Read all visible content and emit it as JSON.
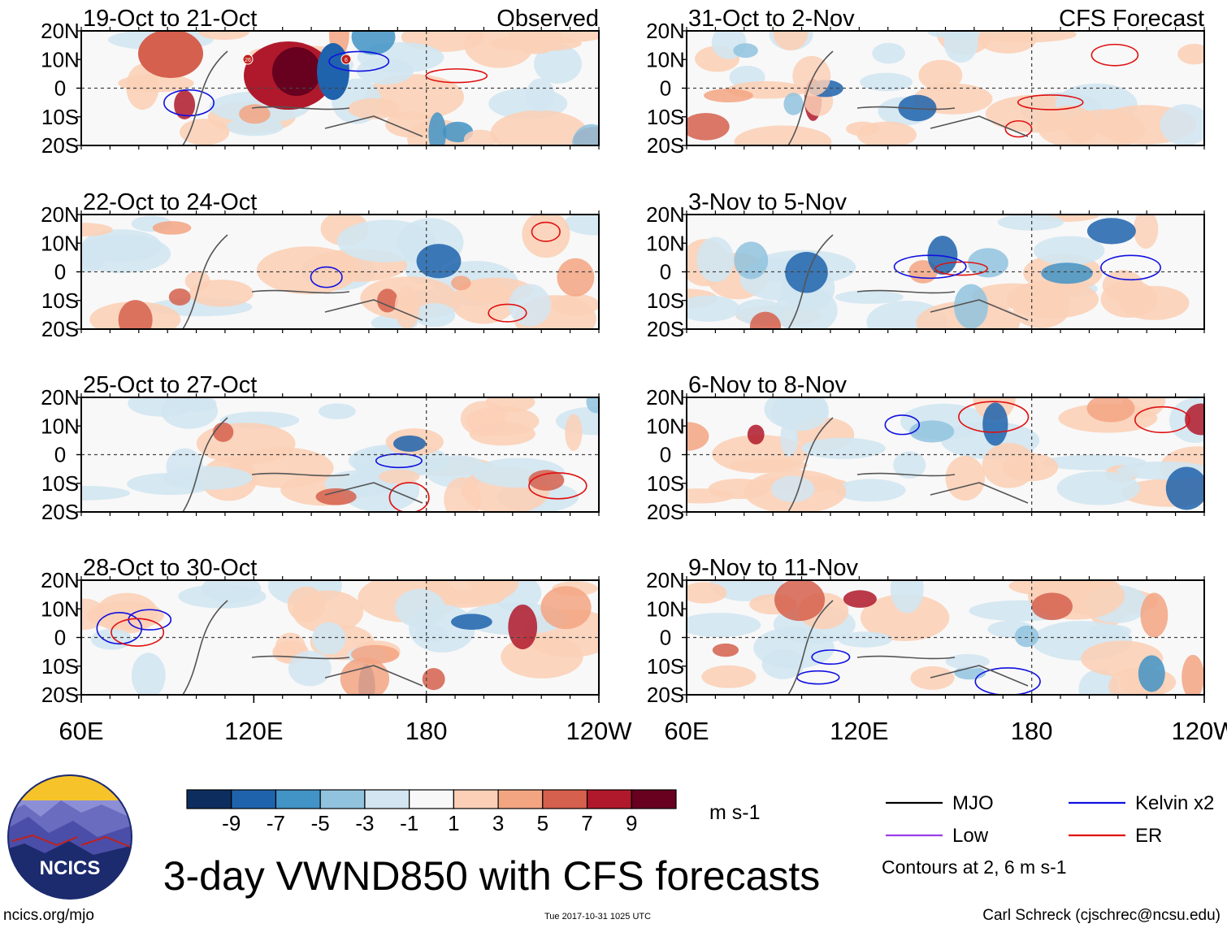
{
  "footer": {
    "site": "ncics.org/mjo",
    "timestamp": "Tue 2017-10-31 1025 UTC",
    "credit": "Carl Schreck (cjschrec@ncsu.edu)",
    "logo_text": "NCICS"
  },
  "chart_data": {
    "type": "heatmap",
    "title": "3-day VWND850 with CFS forecasts",
    "variable": "850-hPa meridional wind anomaly",
    "colorbar": {
      "unit": "m s-1",
      "tick_labels": [
        "-9",
        "-7",
        "-5",
        "-3",
        "-1",
        "1",
        "3",
        "5",
        "7",
        "9"
      ],
      "colors": [
        "#0d2d5e",
        "#1f63ad",
        "#4293c6",
        "#91c3df",
        "#d2e5f1",
        "#f8f8f8",
        "#fbd0b7",
        "#f3a582",
        "#d5604d",
        "#b0192b",
        "#68001f"
      ]
    },
    "x_axis": {
      "range_deg_east": [
        60,
        240
      ],
      "tick_labels": [
        "60E",
        "120E",
        "180",
        "120W"
      ]
    },
    "y_axis": {
      "range_deg_north": [
        -20,
        20
      ],
      "tick_labels": [
        "20N",
        "10N",
        "0",
        "10S",
        "20S"
      ]
    },
    "column_headers": {
      "left": "Observed",
      "right": "CFS Forecast"
    },
    "panels_left": [
      {
        "label": "19-Oct to 21-Oct",
        "contour_labels": [
          "26",
          "6"
        ]
      },
      {
        "label": "22-Oct to 24-Oct"
      },
      {
        "label": "25-Oct to 27-Oct"
      },
      {
        "label": "28-Oct to 30-Oct"
      }
    ],
    "panels_right": [
      {
        "label": "31-Oct to 2-Nov"
      },
      {
        "label": "3-Nov to 5-Nov"
      },
      {
        "label": "6-Nov to 8-Nov"
      },
      {
        "label": "9-Nov to 11-Nov"
      }
    ],
    "legend": {
      "entries": [
        {
          "name": "MJO",
          "color": "#000000"
        },
        {
          "name": "Kelvin x2",
          "color": "#1010e0"
        },
        {
          "name": "Low",
          "color": "#9a3ee6"
        },
        {
          "name": "ER",
          "color": "#e01010"
        }
      ],
      "note": "Contours at 2, 6 m s-1"
    }
  }
}
